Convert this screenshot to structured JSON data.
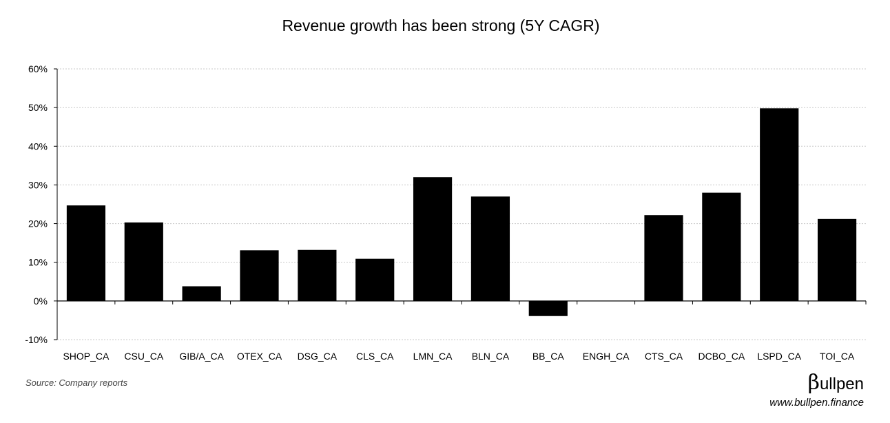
{
  "chart_data": {
    "type": "bar",
    "title": "Revenue growth has been strong (5Y CAGR)",
    "xlabel": "",
    "ylabel": "",
    "categories": [
      "SHOP_CA",
      "CSU_CA",
      "GIB/A_CA",
      "OTEX_CA",
      "DSG_CA",
      "CLS_CA",
      "LMN_CA",
      "BLN_CA",
      "BB_CA",
      "ENGH_CA",
      "CTS_CA",
      "DCBO_CA",
      "LSPD_CA",
      "TOI_CA"
    ],
    "values": [
      24.7,
      20.3,
      3.8,
      13.1,
      13.2,
      10.9,
      32.0,
      27.0,
      -3.9,
      0.0,
      22.2,
      28.0,
      49.8,
      21.2
    ],
    "ylim": [
      -10,
      60
    ],
    "yticks": [
      -10,
      0,
      10,
      20,
      30,
      40,
      50,
      60
    ],
    "ytick_labels": [
      "-10%",
      "0%",
      "10%",
      "20%",
      "30%",
      "40%",
      "50%",
      "60%"
    ],
    "grid": true,
    "bar_color": "#000000",
    "grid_color": "#c8c8c8"
  },
  "footer": {
    "source": "Source: Company reports",
    "brand_beta": "β",
    "brand_name": "ullpen",
    "url": "www.bullpen.finance"
  }
}
